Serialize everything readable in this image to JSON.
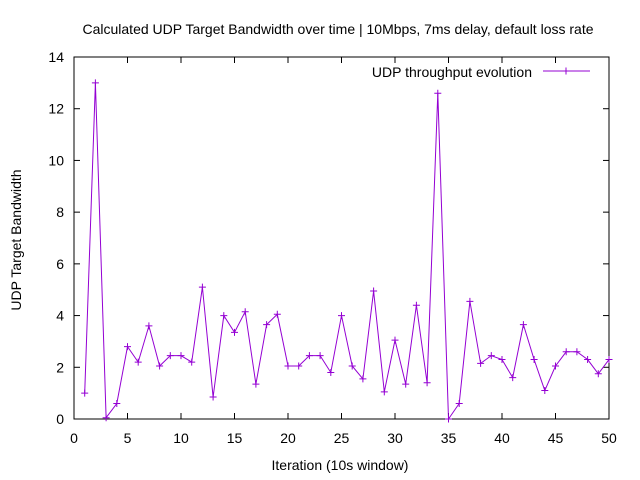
{
  "chart_data": {
    "type": "line",
    "title": "Calculated UDP Target Bandwidth over time | 10Mbps, 7ms delay, default loss rate",
    "xlabel": "Iteration (10s window)",
    "ylabel": "UDP Target Bandwidth",
    "xlim": [
      0,
      50
    ],
    "ylim": [
      0,
      14
    ],
    "xticks": [
      0,
      5,
      10,
      15,
      20,
      25,
      30,
      35,
      40,
      45,
      50
    ],
    "yticks": [
      0,
      2,
      4,
      6,
      8,
      10,
      12,
      14
    ],
    "grid": false,
    "legend_position": "top-right",
    "series": [
      {
        "name": "UDP throughput evolution",
        "color": "#9400d3",
        "marker": "plus",
        "x": [
          1,
          2,
          3,
          4,
          5,
          6,
          7,
          8,
          9,
          10,
          11,
          12,
          13,
          14,
          15,
          16,
          17,
          18,
          19,
          20,
          21,
          22,
          23,
          24,
          25,
          26,
          27,
          28,
          29,
          30,
          31,
          32,
          33,
          34,
          35,
          36,
          37,
          38,
          39,
          40,
          41,
          42,
          43,
          44,
          45,
          46,
          47,
          48,
          49,
          50
        ],
        "y": [
          1.0,
          13.0,
          0.05,
          0.6,
          2.8,
          2.2,
          3.6,
          2.05,
          2.45,
          2.45,
          2.2,
          5.1,
          0.85,
          4.0,
          3.35,
          4.15,
          1.35,
          3.65,
          4.05,
          2.05,
          2.05,
          2.45,
          2.45,
          1.8,
          4.0,
          2.05,
          1.55,
          4.95,
          1.05,
          3.05,
          1.35,
          4.4,
          1.4,
          12.6,
          0.0,
          0.6,
          4.55,
          2.15,
          2.45,
          2.3,
          1.6,
          3.65,
          2.3,
          1.1,
          2.05,
          2.6,
          2.6,
          2.3,
          1.75,
          2.3
        ]
      }
    ]
  }
}
